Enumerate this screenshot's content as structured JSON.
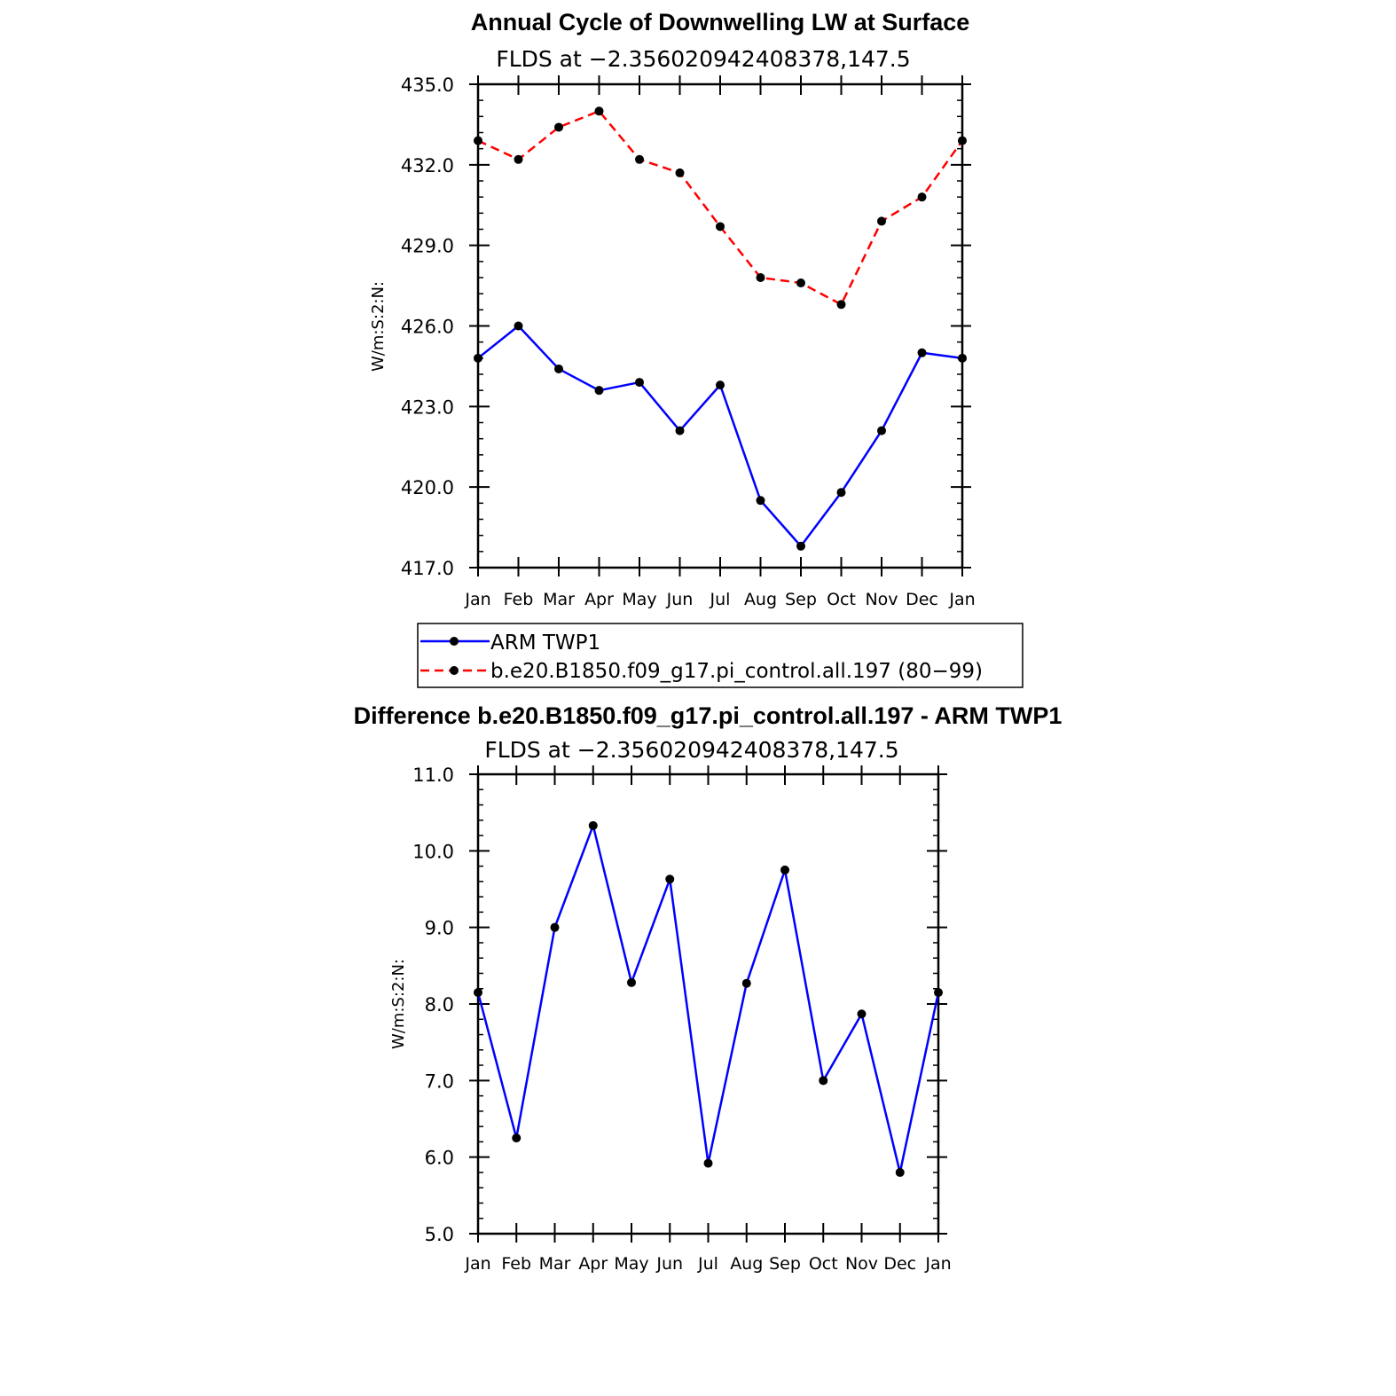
{
  "chart_data": [
    {
      "type": "line",
      "title": "Annual Cycle of Downwelling LW at Surface",
      "subtitle": "FLDS at −2.356020942408378,147.5",
      "ylabel": "W/m:S:2:N:",
      "ylim": [
        417.0,
        435.0
      ],
      "yticks": [
        "417.0",
        "420.0",
        "423.0",
        "426.0",
        "429.0",
        "432.0",
        "435.0"
      ],
      "categories": [
        "Jan",
        "Feb",
        "Mar",
        "Apr",
        "May",
        "Jun",
        "Jul",
        "Aug",
        "Sep",
        "Oct",
        "Nov",
        "Dec",
        "Jan"
      ],
      "series": [
        {
          "name": "ARM TWP1",
          "color": "#0000ff",
          "dash": "solid",
          "values": [
            424.8,
            426.0,
            424.4,
            423.6,
            423.9,
            422.1,
            423.8,
            419.5,
            417.8,
            419.8,
            422.1,
            425.0,
            424.8
          ]
        },
        {
          "name": "b.e20.B1850.f09_g17.pi_control.all.197 (80−99)",
          "color": "#ff0000",
          "dash": "dashed",
          "values": [
            432.9,
            432.2,
            433.4,
            434.0,
            432.2,
            431.7,
            429.7,
            427.8,
            427.6,
            426.8,
            429.9,
            430.8,
            432.9
          ]
        }
      ],
      "legend": "below"
    },
    {
      "type": "line",
      "title": "Difference b.e20.B1850.f09_g17.pi_control.all.197 - ARM TWP1",
      "subtitle": "FLDS at −2.356020942408378,147.5",
      "ylabel": "W/m:S:2:N:",
      "ylim": [
        5.0,
        11.0
      ],
      "yticks": [
        "5.0",
        "6.0",
        "7.0",
        "8.0",
        "9.0",
        "10.0",
        "11.0"
      ],
      "categories": [
        "Jan",
        "Feb",
        "Mar",
        "Apr",
        "May",
        "Jun",
        "Jul",
        "Aug",
        "Sep",
        "Oct",
        "Nov",
        "Dec",
        "Jan"
      ],
      "series": [
        {
          "color": "#0000ff",
          "dash": "solid",
          "values": [
            8.15,
            6.25,
            9.0,
            10.33,
            8.28,
            9.63,
            5.92,
            8.27,
            9.75,
            7.0,
            7.87,
            5.8,
            8.15
          ]
        }
      ]
    }
  ]
}
